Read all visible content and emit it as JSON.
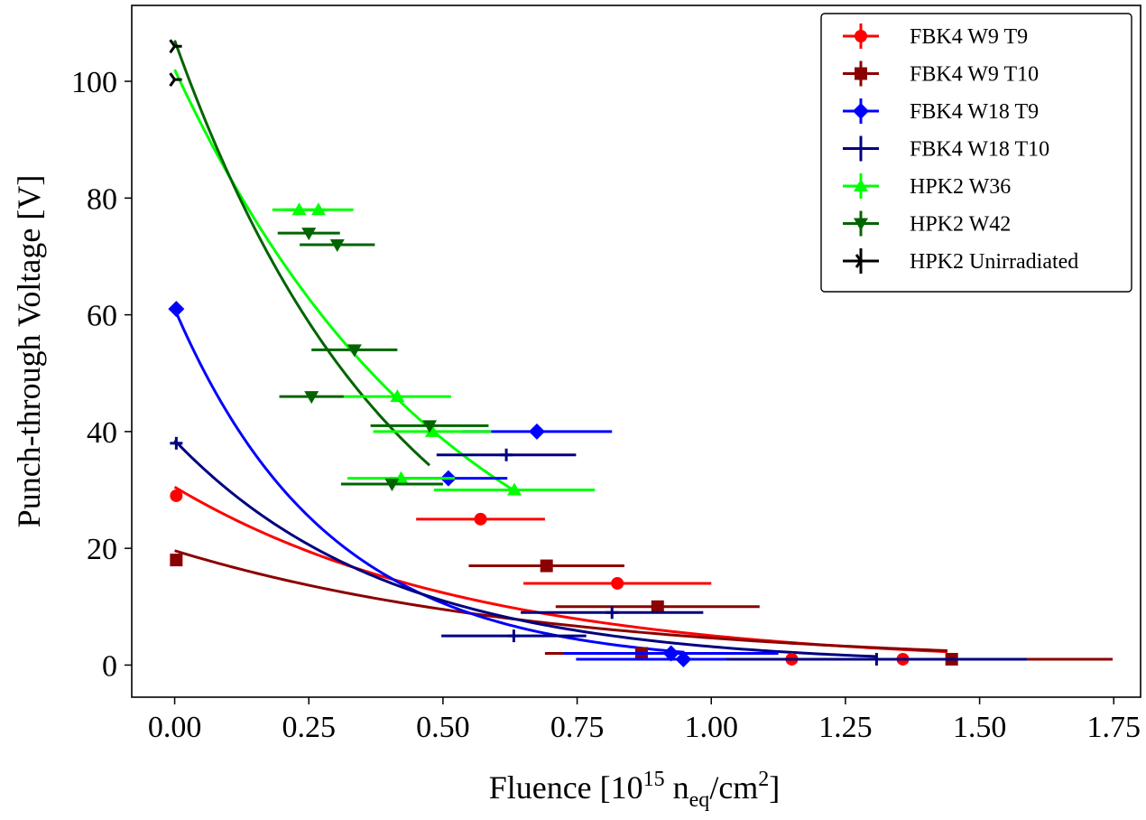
{
  "chart_data": {
    "type": "scatter",
    "title": "",
    "xlabel": {
      "prefix": "Fluence [10",
      "exp": "15",
      "mid": " n",
      "sub": "eq",
      "unit": "/cm",
      "unit_exp": "2",
      "suffix": "]"
    },
    "ylabel": "Punch-through Voltage [V]",
    "xlim": [
      -0.08,
      1.8
    ],
    "ylim": [
      -5.5,
      113
    ],
    "xticks": [
      0.0,
      0.25,
      0.5,
      0.75,
      1.0,
      1.25,
      1.5,
      1.75
    ],
    "xtick_labels": [
      "0.00",
      "0.25",
      "0.50",
      "0.75",
      "1.00",
      "1.25",
      "1.50",
      "1.75"
    ],
    "yticks": [
      0,
      20,
      40,
      60,
      80,
      100
    ],
    "ytick_labels": [
      "0",
      "20",
      "40",
      "60",
      "80",
      "100"
    ],
    "legend_position": "top-right",
    "series": [
      {
        "name": "FBK4 W9 T9",
        "color": "#ff0000",
        "marker": "circle",
        "points": [
          {
            "x": 0.003,
            "y": 29,
            "xerr": 0,
            "yerr": 1.0
          },
          {
            "x": 0.57,
            "y": 25,
            "xerr": 0.12
          },
          {
            "x": 0.825,
            "y": 14,
            "xerr": 0.175
          },
          {
            "x": 1.15,
            "y": 1,
            "xerr": 0
          },
          {
            "x": 1.357,
            "y": 1,
            "xerr": 0
          }
        ],
        "fit": {
          "a": 30.5,
          "b": 1.8,
          "x0": 0.0,
          "x1": 1.44
        }
      },
      {
        "name": "FBK4 W9 T10",
        "color": "#8b0000",
        "marker": "square",
        "points": [
          {
            "x": 0.003,
            "y": 18,
            "xerr": 0,
            "yerr": 1.0
          },
          {
            "x": 0.693,
            "y": 17,
            "xerr": 0.145
          },
          {
            "x": 0.9,
            "y": 10,
            "xerr": 0.19
          },
          {
            "x": 0.87,
            "y": 2,
            "xerr": 0.18
          },
          {
            "x": 1.448,
            "y": 1,
            "xerr": 0.3
          }
        ],
        "fit": {
          "a": 19.6,
          "b": 1.44,
          "x0": 0.0,
          "x1": 1.44
        }
      },
      {
        "name": "FBK4 W18 T9",
        "color": "#0000ff",
        "marker": "diamond",
        "points": [
          {
            "x": 0.003,
            "y": 61,
            "xerr": 0
          },
          {
            "x": 0.675,
            "y": 40,
            "xerr": 0.14
          },
          {
            "x": 0.51,
            "y": 32,
            "xerr": 0.11
          },
          {
            "x": 0.925,
            "y": 2,
            "xerr": 0.2
          },
          {
            "x": 0.948,
            "y": 1,
            "xerr": 0.2
          }
        ],
        "fit": {
          "a": 61,
          "b": 3.5,
          "x0": 0.0,
          "x1": 0.95
        }
      },
      {
        "name": "FBK4 W18 T10",
        "color": "#000080",
        "marker": "plus",
        "points": [
          {
            "x": 0.003,
            "y": 38,
            "xerr": 0
          },
          {
            "x": 0.618,
            "y": 36,
            "xerr": 0.13
          },
          {
            "x": 0.815,
            "y": 9,
            "xerr": 0.17
          },
          {
            "x": 0.632,
            "y": 5,
            "xerr": 0.135
          },
          {
            "x": 1.308,
            "y": 1,
            "xerr": 0.28
          }
        ],
        "fit": {
          "a": 38.5,
          "b": 2.5,
          "x0": 0.0,
          "x1": 1.31
        }
      },
      {
        "name": "HPK2 W36",
        "color": "#00ff00",
        "marker": "triangle-up",
        "points": [
          {
            "x": 0.232,
            "y": 78,
            "xerr": 0.05
          },
          {
            "x": 0.268,
            "y": 78,
            "xerr": 0.065
          },
          {
            "x": 0.415,
            "y": 46,
            "xerr": 0.1
          },
          {
            "x": 0.48,
            "y": 40,
            "xerr": 0.11
          },
          {
            "x": 0.422,
            "y": 32,
            "xerr": 0.1
          },
          {
            "x": 0.633,
            "y": 30,
            "xerr": 0.15
          }
        ],
        "fit": {
          "a": 102,
          "b": 1.94,
          "x0": 0.0,
          "x1": 0.633
        }
      },
      {
        "name": "HPK2 W42",
        "color": "#006400",
        "marker": "triangle-down",
        "points": [
          {
            "x": 0.25,
            "y": 74,
            "xerr": 0.058
          },
          {
            "x": 0.303,
            "y": 72,
            "xerr": 0.07
          },
          {
            "x": 0.335,
            "y": 54,
            "xerr": 0.08
          },
          {
            "x": 0.255,
            "y": 46,
            "xerr": 0.06
          },
          {
            "x": 0.475,
            "y": 41,
            "xerr": 0.11
          },
          {
            "x": 0.405,
            "y": 31,
            "xerr": 0.095
          }
        ],
        "fit": {
          "a": 107,
          "b": 2.4,
          "x0": 0.0,
          "x1": 0.475
        }
      },
      {
        "name": "HPK2 Unirradiated",
        "color": "#000000",
        "marker": "tri-right",
        "points": [
          {
            "x": 0.0,
            "y": 106,
            "xerr": 0
          },
          {
            "x": 0.0,
            "y": 100.3,
            "xerr": 0
          }
        ],
        "fit": null
      }
    ]
  }
}
